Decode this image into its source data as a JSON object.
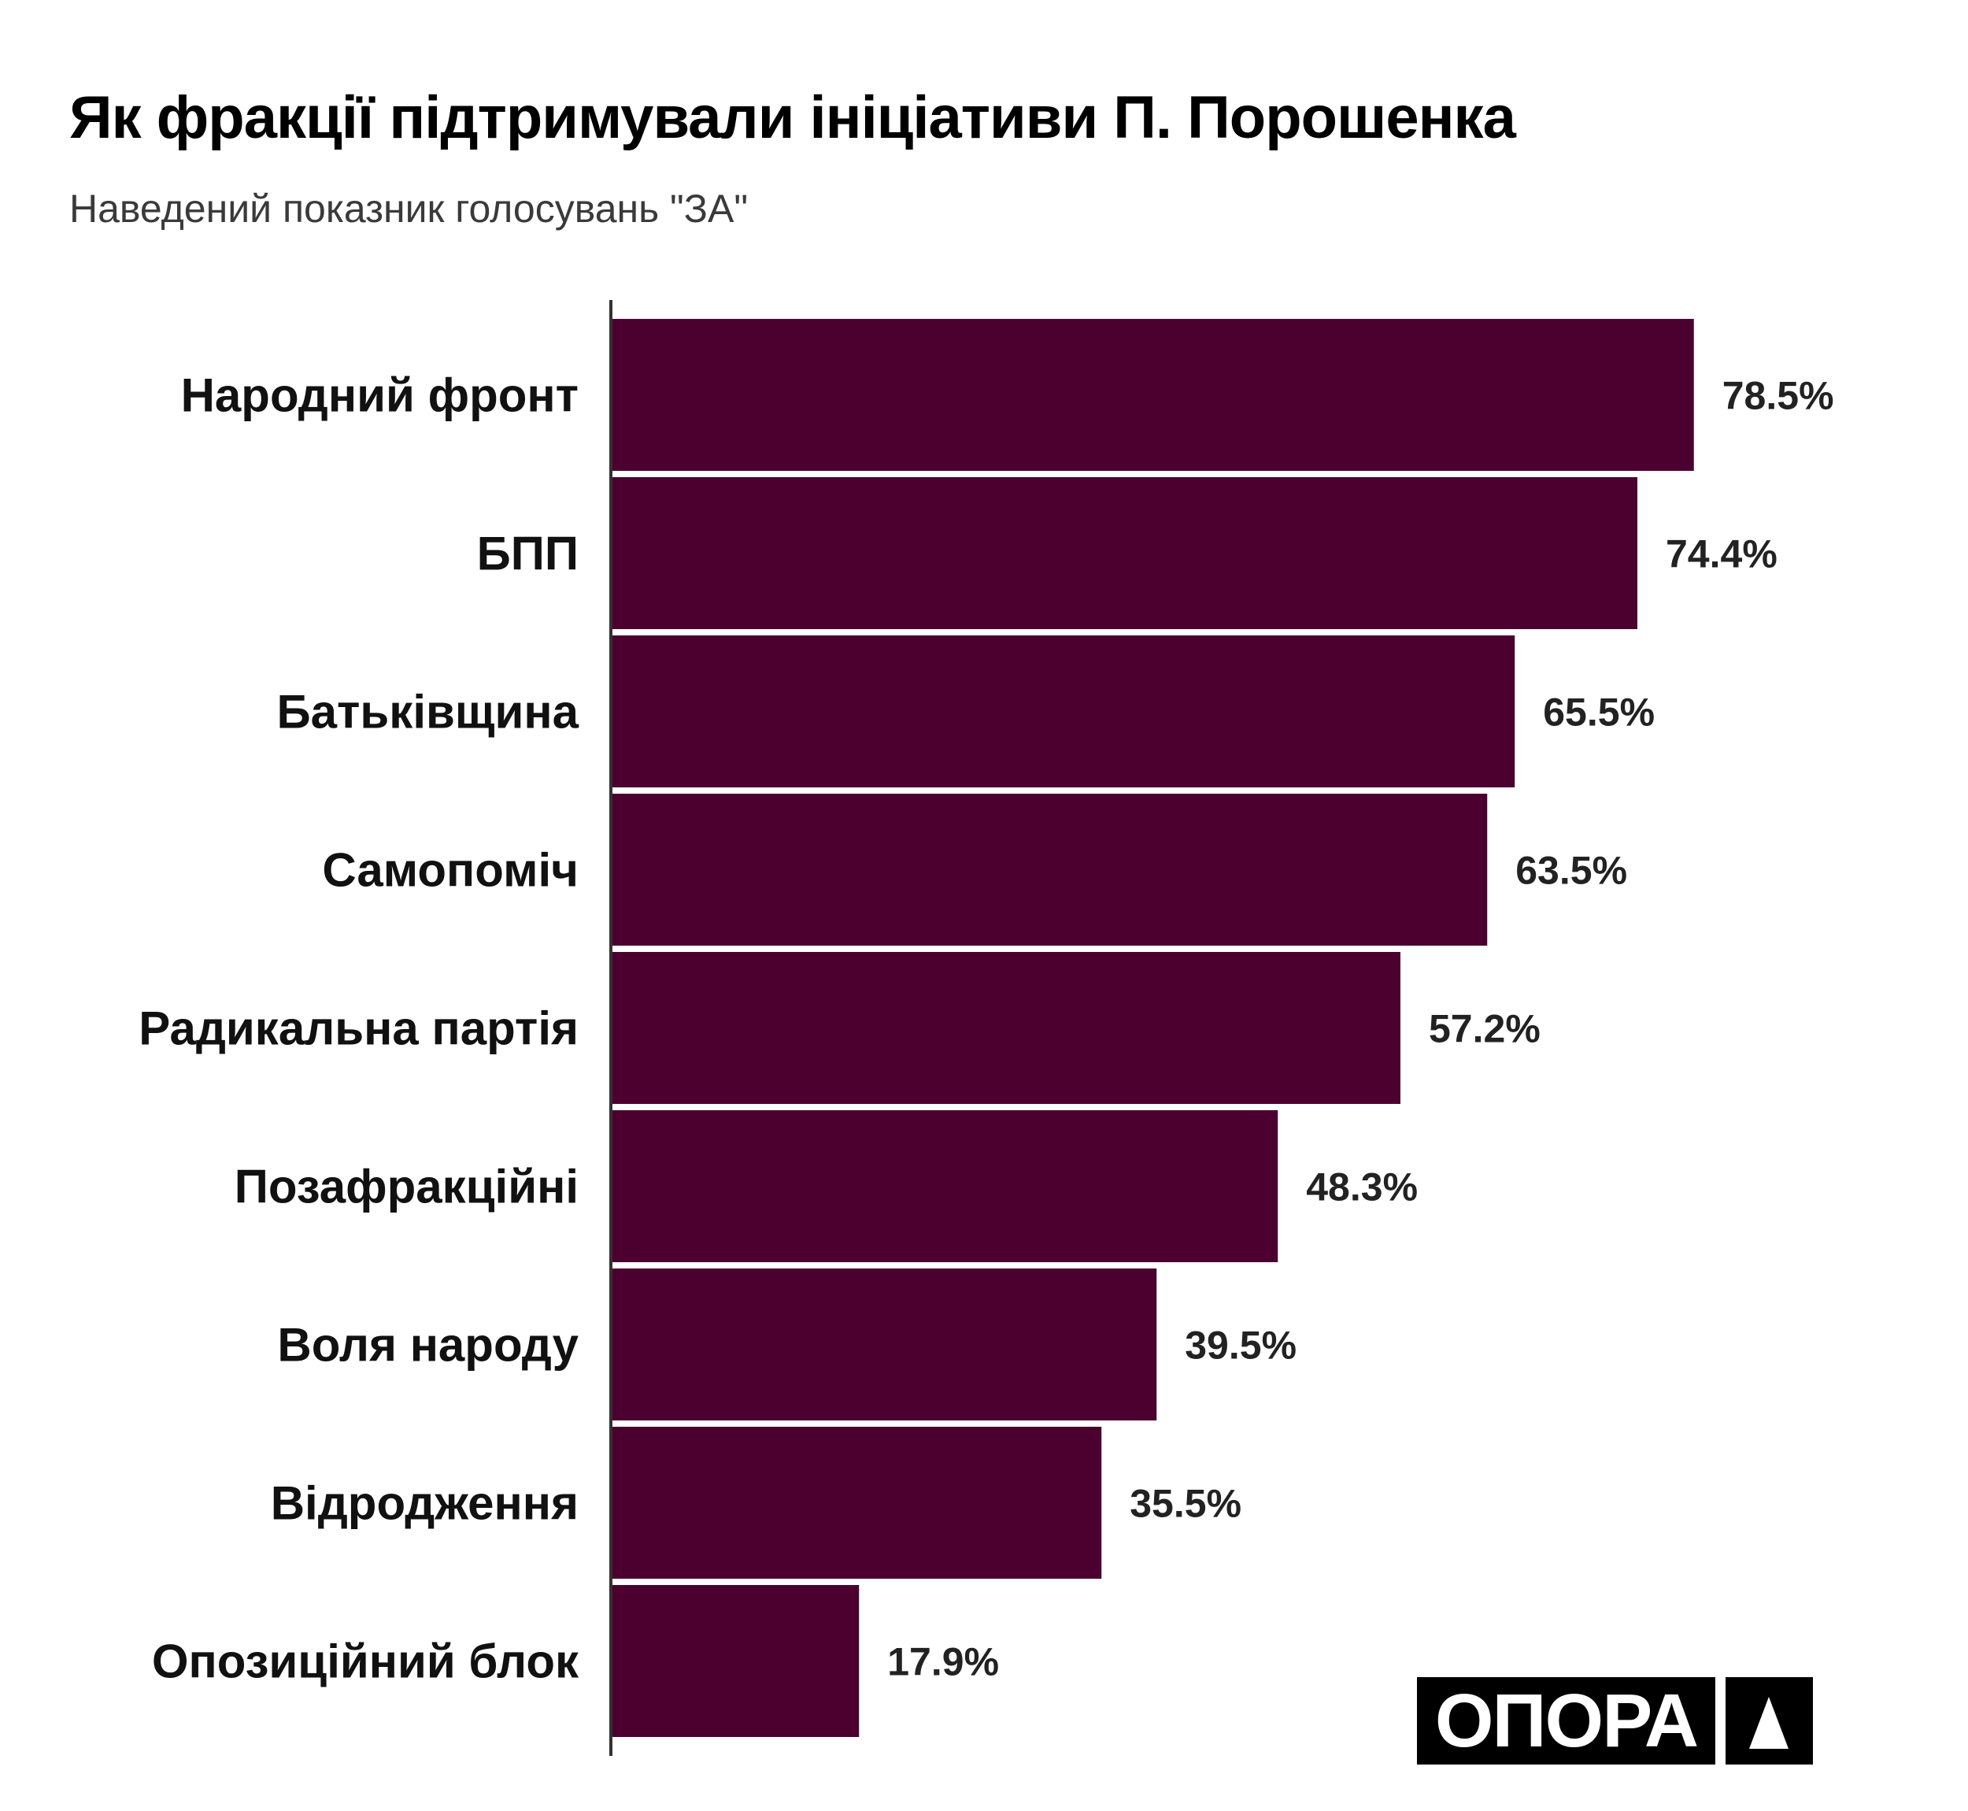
{
  "chart_data": {
    "type": "bar",
    "orientation": "horizontal",
    "title": "Як фракції підтримували ініціативи П. Порошенка",
    "subtitle": "Наведений показник голосувань \"ЗА\"",
    "categories": [
      "Народний фронт",
      "БПП",
      "Батьківщина",
      "Самопоміч",
      "Радикальна партія",
      "Позафракційні",
      "Воля народу",
      "Відродження",
      "Опозиційний блок"
    ],
    "values": [
      78.5,
      74.4,
      65.5,
      63.5,
      57.2,
      48.3,
      39.5,
      35.5,
      17.9
    ],
    "value_labels": [
      "78.5%",
      "74.4%",
      "65.5%",
      "63.5%",
      "57.2%",
      "48.3%",
      "39.5%",
      "35.5%",
      "17.9%"
    ],
    "xlabel": "",
    "ylabel": "",
    "xlim": [
      0,
      100
    ],
    "grid": false,
    "bar_color": "#4b0030"
  },
  "logo": {
    "text": "ОПОРА"
  }
}
